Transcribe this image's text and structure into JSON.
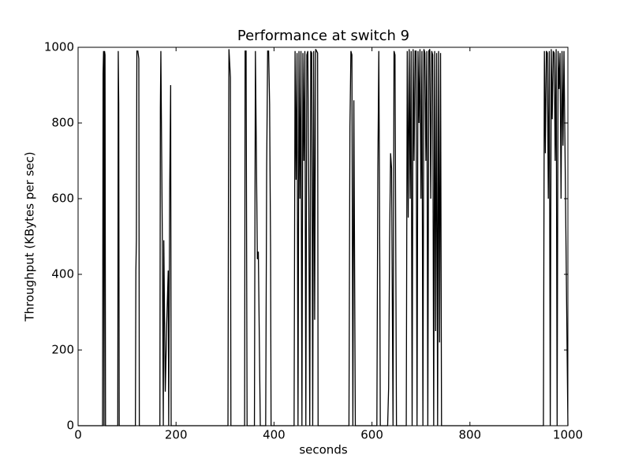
{
  "chart_data": {
    "type": "line",
    "title": "Performance at switch 9",
    "x_label": "seconds",
    "y_label": "Throughput (KBytes per sec)",
    "color": "#000000",
    "x": [
      0,
      50,
      51,
      52,
      53,
      54,
      55,
      56,
      81,
      82,
      83,
      84,
      117,
      118,
      119,
      120,
      122,
      124,
      125,
      167,
      168,
      169,
      172,
      174,
      175,
      178,
      181,
      184,
      185,
      187,
      189,
      190,
      306,
      307,
      308,
      311,
      312,
      340,
      341,
      343,
      345,
      360,
      362,
      366,
      368,
      372,
      383,
      385,
      387,
      389,
      391,
      393,
      394,
      441,
      443,
      445,
      447,
      449,
      451,
      453,
      455,
      457,
      459,
      461,
      463,
      465,
      467,
      469,
      471,
      473,
      475,
      477,
      479,
      481,
      483,
      485,
      487,
      489,
      490,
      553,
      555,
      557,
      559,
      561,
      563,
      566,
      610,
      612,
      614,
      616,
      617,
      632,
      634,
      636,
      638,
      640,
      643,
      645,
      647,
      650,
      670,
      672,
      674,
      676,
      678,
      680,
      682,
      684,
      686,
      688,
      690,
      692,
      694,
      696,
      698,
      700,
      702,
      704,
      706,
      708,
      710,
      712,
      714,
      716,
      718,
      720,
      722,
      724,
      726,
      728,
      730,
      732,
      734,
      736,
      738,
      740,
      742,
      950,
      952,
      954,
      956,
      958,
      960,
      962,
      964,
      966,
      968,
      970,
      972,
      974,
      976,
      978,
      980,
      982,
      984,
      986,
      988,
      990,
      992,
      1000
    ],
    "values": [
      0,
      0,
      930,
      990,
      0,
      990,
      980,
      0,
      0,
      990,
      850,
      0,
      0,
      410,
      490,
      990,
      990,
      970,
      0,
      0,
      840,
      990,
      490,
      0,
      490,
      90,
      270,
      410,
      0,
      620,
      900,
      0,
      0,
      600,
      995,
      920,
      0,
      0,
      990,
      990,
      0,
      0,
      990,
      440,
      460,
      0,
      0,
      680,
      990,
      990,
      850,
      460,
      0,
      0,
      990,
      650,
      985,
      0,
      990,
      600,
      990,
      0,
      985,
      700,
      990,
      0,
      980,
      990,
      600,
      0,
      990,
      985,
      0,
      990,
      280,
      995,
      990,
      985,
      0,
      0,
      790,
      990,
      980,
      0,
      860,
      0,
      0,
      680,
      990,
      420,
      0,
      0,
      100,
      490,
      720,
      680,
      0,
      990,
      980,
      0,
      0,
      990,
      550,
      995,
      600,
      990,
      0,
      995,
      700,
      990,
      990,
      0,
      990,
      800,
      995,
      600,
      990,
      0,
      995,
      985,
      700,
      990,
      0,
      990,
      995,
      600,
      990,
      980,
      0,
      990,
      250,
      985,
      0,
      990,
      220,
      985,
      0,
      0,
      990,
      720,
      990,
      985,
      600,
      990,
      0,
      995,
      810,
      990,
      985,
      700,
      995,
      0,
      990,
      890,
      985,
      600,
      990,
      740,
      990,
      0
    ],
    "xlim": [
      0,
      1000
    ],
    "ylim": [
      0,
      1000
    ],
    "xticks": [
      0,
      200,
      400,
      600,
      800,
      1000
    ],
    "yticks": [
      0,
      200,
      400,
      600,
      800,
      1000
    ]
  }
}
